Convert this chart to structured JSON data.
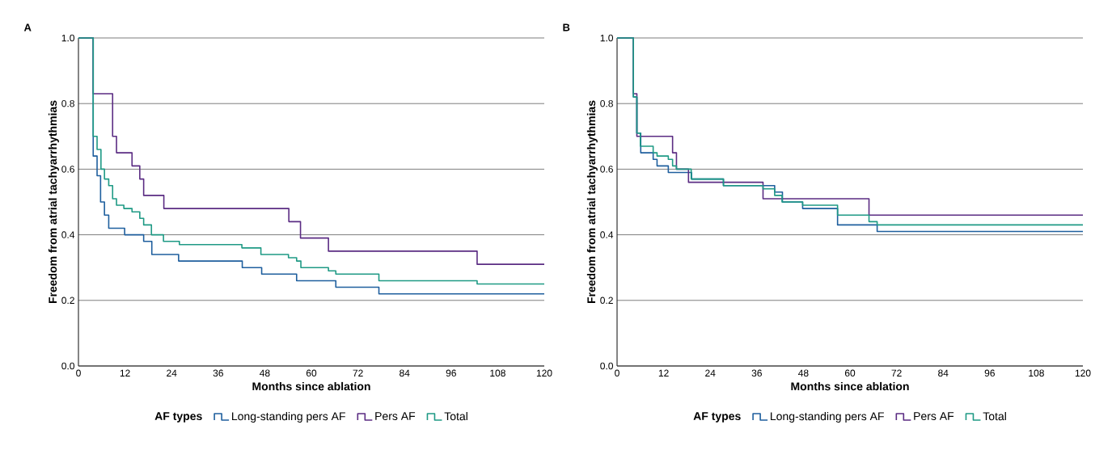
{
  "chart_data": [
    {
      "type": "step",
      "title": "A",
      "xlabel": "Months since ablation",
      "ylabel": "Freedom from atrial tachyarrhythmias",
      "legend_title": "AF types",
      "legend": "bottom",
      "grid": "y",
      "xlim": [
        0,
        120
      ],
      "xticks": [
        0,
        12,
        24,
        36,
        48,
        60,
        72,
        84,
        96,
        108,
        120
      ],
      "ylim": [
        0,
        1
      ],
      "yticks": [
        {
          "value": 0,
          "label": "0.0"
        },
        {
          "value": 0.2,
          "label": "0.2"
        },
        {
          "value": 0.4,
          "label": "0.4"
        },
        {
          "value": 0.6,
          "label": "0.6"
        },
        {
          "value": 0.8,
          "label": "0.8"
        },
        {
          "value": 1,
          "label": "1.0"
        }
      ],
      "series": [
        {
          "name": "Long-standing pers AF",
          "color": "#1f5f9e",
          "x": [
            0,
            3.8,
            4.8,
            5.7,
            6.7,
            7.8,
            11.9,
            16.8,
            18.9,
            25.8,
            42.2,
            47.2,
            56.2,
            66.3,
            77.4,
            120
          ],
          "values": [
            1.0,
            0.64,
            0.58,
            0.5,
            0.46,
            0.42,
            0.4,
            0.38,
            0.34,
            0.32,
            0.3,
            0.28,
            0.26,
            0.24,
            0.22,
            0.22
          ]
        },
        {
          "name": "Pers AF",
          "color": "#5b2c83",
          "x": [
            0,
            3.8,
            8.8,
            9.8,
            13.8,
            15.8,
            16.8,
            22,
            54.2,
            57.2,
            64.4,
            102.7,
            120
          ],
          "values": [
            1.0,
            0.83,
            0.7,
            0.65,
            0.61,
            0.57,
            0.52,
            0.48,
            0.44,
            0.39,
            0.35,
            0.31,
            0.31
          ]
        },
        {
          "name": "Total",
          "color": "#1f9a85",
          "x": [
            0,
            3.8,
            4.8,
            5.8,
            6.7,
            7.8,
            8.8,
            9.8,
            11.7,
            13.8,
            15.8,
            16.8,
            18.8,
            21.9,
            26,
            42.1,
            47,
            54.1,
            56.2,
            57.3,
            64.4,
            66.3,
            77.4,
            102.7,
            120
          ],
          "values": [
            1.0,
            0.7,
            0.66,
            0.6,
            0.57,
            0.55,
            0.51,
            0.49,
            0.48,
            0.47,
            0.45,
            0.43,
            0.4,
            0.38,
            0.37,
            0.36,
            0.34,
            0.33,
            0.32,
            0.3,
            0.29,
            0.28,
            0.26,
            0.25,
            0.25
          ]
        }
      ]
    },
    {
      "type": "step",
      "title": "B",
      "xlabel": "Months since ablation",
      "ylabel": "Freedom from atrial tachyarrhythmias",
      "legend_title": "AF types",
      "legend": "bottom",
      "grid": "y",
      "xlim": [
        0,
        120
      ],
      "xticks": [
        0,
        12,
        24,
        36,
        48,
        60,
        72,
        84,
        96,
        108,
        120
      ],
      "ylim": [
        0,
        1
      ],
      "yticks": [
        {
          "value": 0,
          "label": "0.0"
        },
        {
          "value": 0.2,
          "label": "0.2"
        },
        {
          "value": 0.4,
          "label": "0.4"
        },
        {
          "value": 0.6,
          "label": "0.6"
        },
        {
          "value": 0.8,
          "label": "0.8"
        },
        {
          "value": 1,
          "label": "1.0"
        }
      ],
      "series": [
        {
          "name": "Long-standing pers AF",
          "color": "#1f5f9e",
          "x": [
            0,
            4.2,
            5.1,
            6.1,
            9.3,
            10.3,
            13.2,
            19.2,
            27.4,
            40.6,
            42.6,
            47.8,
            56.8,
            67,
            120
          ],
          "values": [
            1.0,
            0.82,
            0.71,
            0.65,
            0.63,
            0.61,
            0.59,
            0.57,
            0.55,
            0.53,
            0.5,
            0.48,
            0.43,
            0.41,
            0.41
          ]
        },
        {
          "name": "Pers AF",
          "color": "#5b2c83",
          "x": [
            0,
            4.2,
            5.1,
            14.3,
            15.3,
            18.4,
            37.6,
            64.9,
            120
          ],
          "values": [
            1.0,
            0.83,
            0.7,
            0.65,
            0.6,
            0.56,
            0.51,
            0.46,
            0.46
          ]
        },
        {
          "name": "Total",
          "color": "#1f9a85",
          "x": [
            0,
            4.2,
            5.1,
            6.0,
            9.3,
            10.3,
            13.2,
            14.3,
            15.3,
            19.1,
            27.4,
            37.6,
            40.6,
            42.5,
            47.8,
            56.8,
            64.9,
            67,
            120
          ],
          "values": [
            1.0,
            0.82,
            0.71,
            0.67,
            0.65,
            0.64,
            0.63,
            0.61,
            0.6,
            0.57,
            0.55,
            0.54,
            0.52,
            0.5,
            0.49,
            0.46,
            0.44,
            0.43,
            0.43
          ]
        }
      ]
    }
  ]
}
